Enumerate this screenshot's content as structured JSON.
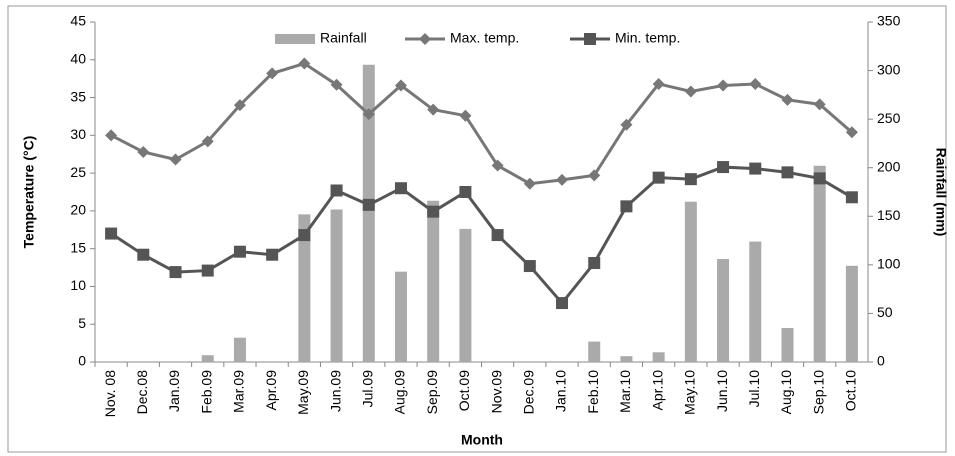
{
  "chart_data": {
    "type": "combo",
    "categories": [
      "Nov. 08",
      "Dec.08",
      "Jan.09",
      "Feb.09",
      "Mar.09",
      "Apr.09",
      "May.09",
      "Jun.09",
      "Jul.09",
      "Aug.09",
      "Sep.09",
      "Oct.09",
      "Nov.09",
      "Dec.09",
      "Jan.10",
      "Feb.10",
      "Mar.10",
      "Apr.10",
      "May.10",
      "Jun.10",
      "Jul.10",
      "Aug.10",
      "Sep.10",
      "Oct.10"
    ],
    "series": [
      {
        "name": "Rainfall",
        "kind": "bar",
        "axis": "y2",
        "color": "#aaaaaa",
        "values": [
          0,
          0,
          0,
          7,
          25,
          0,
          152,
          157,
          306,
          93,
          166,
          137,
          0,
          0,
          0,
          21,
          6,
          10,
          165,
          106,
          124,
          35,
          202,
          99
        ]
      },
      {
        "name": "Max. temp.",
        "kind": "line",
        "marker": "diamond",
        "color": "#777777",
        "values": [
          30,
          27.8,
          26.8,
          29.2,
          34,
          38.2,
          39.5,
          36.7,
          32.8,
          36.6,
          33.4,
          32.6,
          26,
          23.6,
          24.1,
          24.7,
          31.4,
          36.8,
          35.8,
          36.6,
          36.8,
          34.7,
          34.1,
          30.4
        ]
      },
      {
        "name": "Min. temp.",
        "kind": "line",
        "marker": "square",
        "color": "#555555",
        "values": [
          17,
          14.2,
          11.9,
          12.1,
          14.6,
          14.2,
          16.8,
          22.7,
          20.8,
          23,
          19.9,
          22.5,
          16.8,
          12.7,
          7.8,
          13.1,
          20.6,
          24.4,
          24.2,
          25.8,
          25.6,
          25.1,
          24.3,
          21.8
        ]
      }
    ],
    "xlabel": "Month",
    "ylabel": "Temperature (°C)",
    "y2label": "Rainfall (mm)",
    "ylim": [
      0,
      45
    ],
    "yticks": [
      0,
      5,
      10,
      15,
      20,
      25,
      30,
      35,
      40,
      45
    ],
    "y2lim": [
      0,
      350
    ],
    "y2ticks": [
      0,
      50,
      100,
      150,
      200,
      250,
      300,
      350
    ],
    "legend": "top"
  }
}
